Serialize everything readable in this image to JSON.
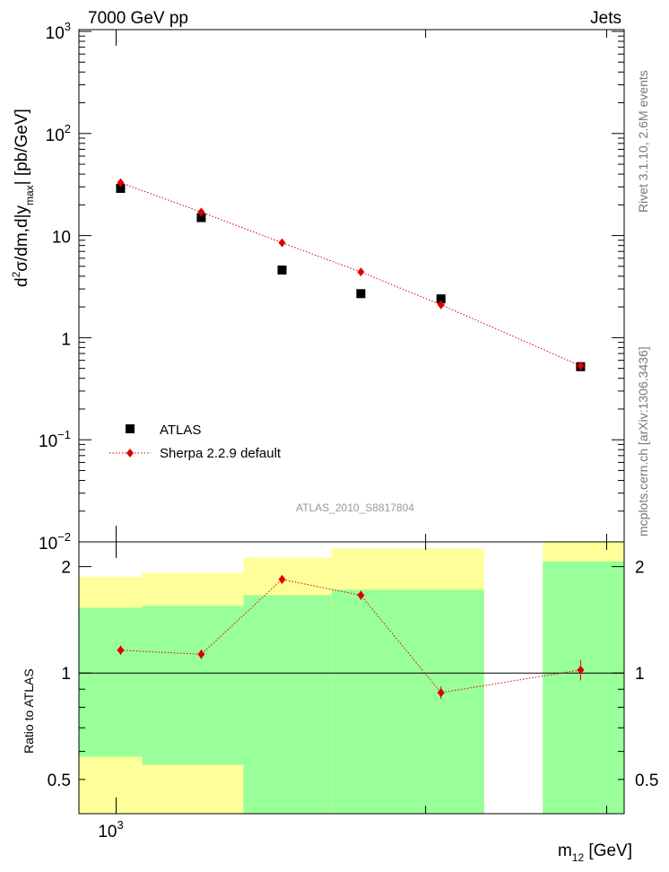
{
  "header": {
    "left": "7000 GeV pp",
    "right": "Jets"
  },
  "side_labels": {
    "rivet": "Rivet 3.1.10,  2.6M events",
    "mcplots": "mcplots.cern.ch [arXiv:1306.3436]"
  },
  "analysis_id": "ATLAS_2010_S8817804",
  "colors": {
    "data": "#000000",
    "mc": "#dd0000",
    "band_inner": "#99ff99",
    "band_outer": "#ffff99"
  },
  "chart_data": [
    {
      "type": "scatter",
      "panel": "main",
      "ylabel": "d²σ/dm,d|y_max| [pb/GeV]",
      "yscale": "log",
      "ylim": [
        0.01,
        1000
      ],
      "yticks": [
        {
          "v": 0.01,
          "b": "10",
          "e": "−2"
        },
        {
          "v": 0.1,
          "b": "10",
          "e": "−1"
        },
        {
          "v": 1,
          "b": "1",
          "e": ""
        },
        {
          "v": 10,
          "b": "10",
          "e": ""
        },
        {
          "v": 100,
          "b": "10",
          "e": "2"
        },
        {
          "v": 1000,
          "b": "10",
          "e": "3"
        }
      ],
      "legend": {
        "position": "lower-left",
        "entries": [
          "ATLAS",
          "Sherpa 2.2.9 default"
        ]
      },
      "series": [
        {
          "name": "ATLAS",
          "marker": "square",
          "points": [
            {
              "x": 1010,
              "y": 29
            },
            {
              "x": 1210,
              "y": 15
            },
            {
              "x": 1450,
              "y": 4.6
            },
            {
              "x": 1730,
              "y": 2.7
            },
            {
              "x": 2070,
              "y": 2.4
            },
            {
              "x": 2830,
              "y": 0.52
            }
          ]
        },
        {
          "name": "Sherpa 2.2.9 default",
          "marker": "diamond",
          "points": [
            {
              "x": 1010,
              "y": 33
            },
            {
              "x": 1210,
              "y": 17
            },
            {
              "x": 1450,
              "y": 8.5
            },
            {
              "x": 1730,
              "y": 4.4
            },
            {
              "x": 2070,
              "y": 2.1
            },
            {
              "x": 2830,
              "y": 0.53
            }
          ]
        }
      ]
    },
    {
      "type": "scatter",
      "panel": "ratio",
      "xlabel": "m₁₂ [GeV]",
      "ylabel": "Ratio to ATLAS",
      "xscale": "log",
      "xlim": [
        920,
        3120
      ],
      "xticks": [
        {
          "v": 1000,
          "b": "10",
          "e": "3"
        }
      ],
      "yscale": "log",
      "ylim": [
        0.4,
        2.35
      ],
      "yticks": [
        {
          "v": 0.5,
          "t": "0.5"
        },
        {
          "v": 1,
          "t": "1"
        },
        {
          "v": 2,
          "t": "2"
        }
      ],
      "reference_line": 1,
      "bands": [
        {
          "x0": 920,
          "x1": 1060,
          "inner": [
            0.58,
            1.53
          ],
          "outer": [
            0.4,
            1.87
          ]
        },
        {
          "x0": 1060,
          "x1": 1330,
          "inner": [
            0.55,
            1.55
          ],
          "outer": [
            0.4,
            1.92
          ]
        },
        {
          "x0": 1330,
          "x1": 1620,
          "inner": [
            0.4,
            1.66
          ],
          "outer": [
            0.4,
            2.12
          ]
        },
        {
          "x0": 1620,
          "x1": 2280,
          "inner": [
            0.4,
            1.72
          ],
          "outer": [
            0.4,
            2.25
          ]
        },
        {
          "x0": 2600,
          "x1": 3120,
          "inner": [
            0.4,
            2.07
          ],
          "outer": [
            0.4,
            2.35
          ]
        }
      ],
      "series": [
        {
          "name": "Sherpa 2.2.9 default",
          "points": [
            {
              "x": 1010,
              "y": 1.16,
              "err": 0.015
            },
            {
              "x": 1210,
              "y": 1.13,
              "err": 0.015
            },
            {
              "x": 1450,
              "y": 1.84,
              "err": 0.02
            },
            {
              "x": 1730,
              "y": 1.66,
              "err": 0.02
            },
            {
              "x": 2070,
              "y": 0.88,
              "err": 0.02
            },
            {
              "x": 2830,
              "y": 1.02,
              "err": 0.05
            }
          ]
        }
      ]
    }
  ]
}
